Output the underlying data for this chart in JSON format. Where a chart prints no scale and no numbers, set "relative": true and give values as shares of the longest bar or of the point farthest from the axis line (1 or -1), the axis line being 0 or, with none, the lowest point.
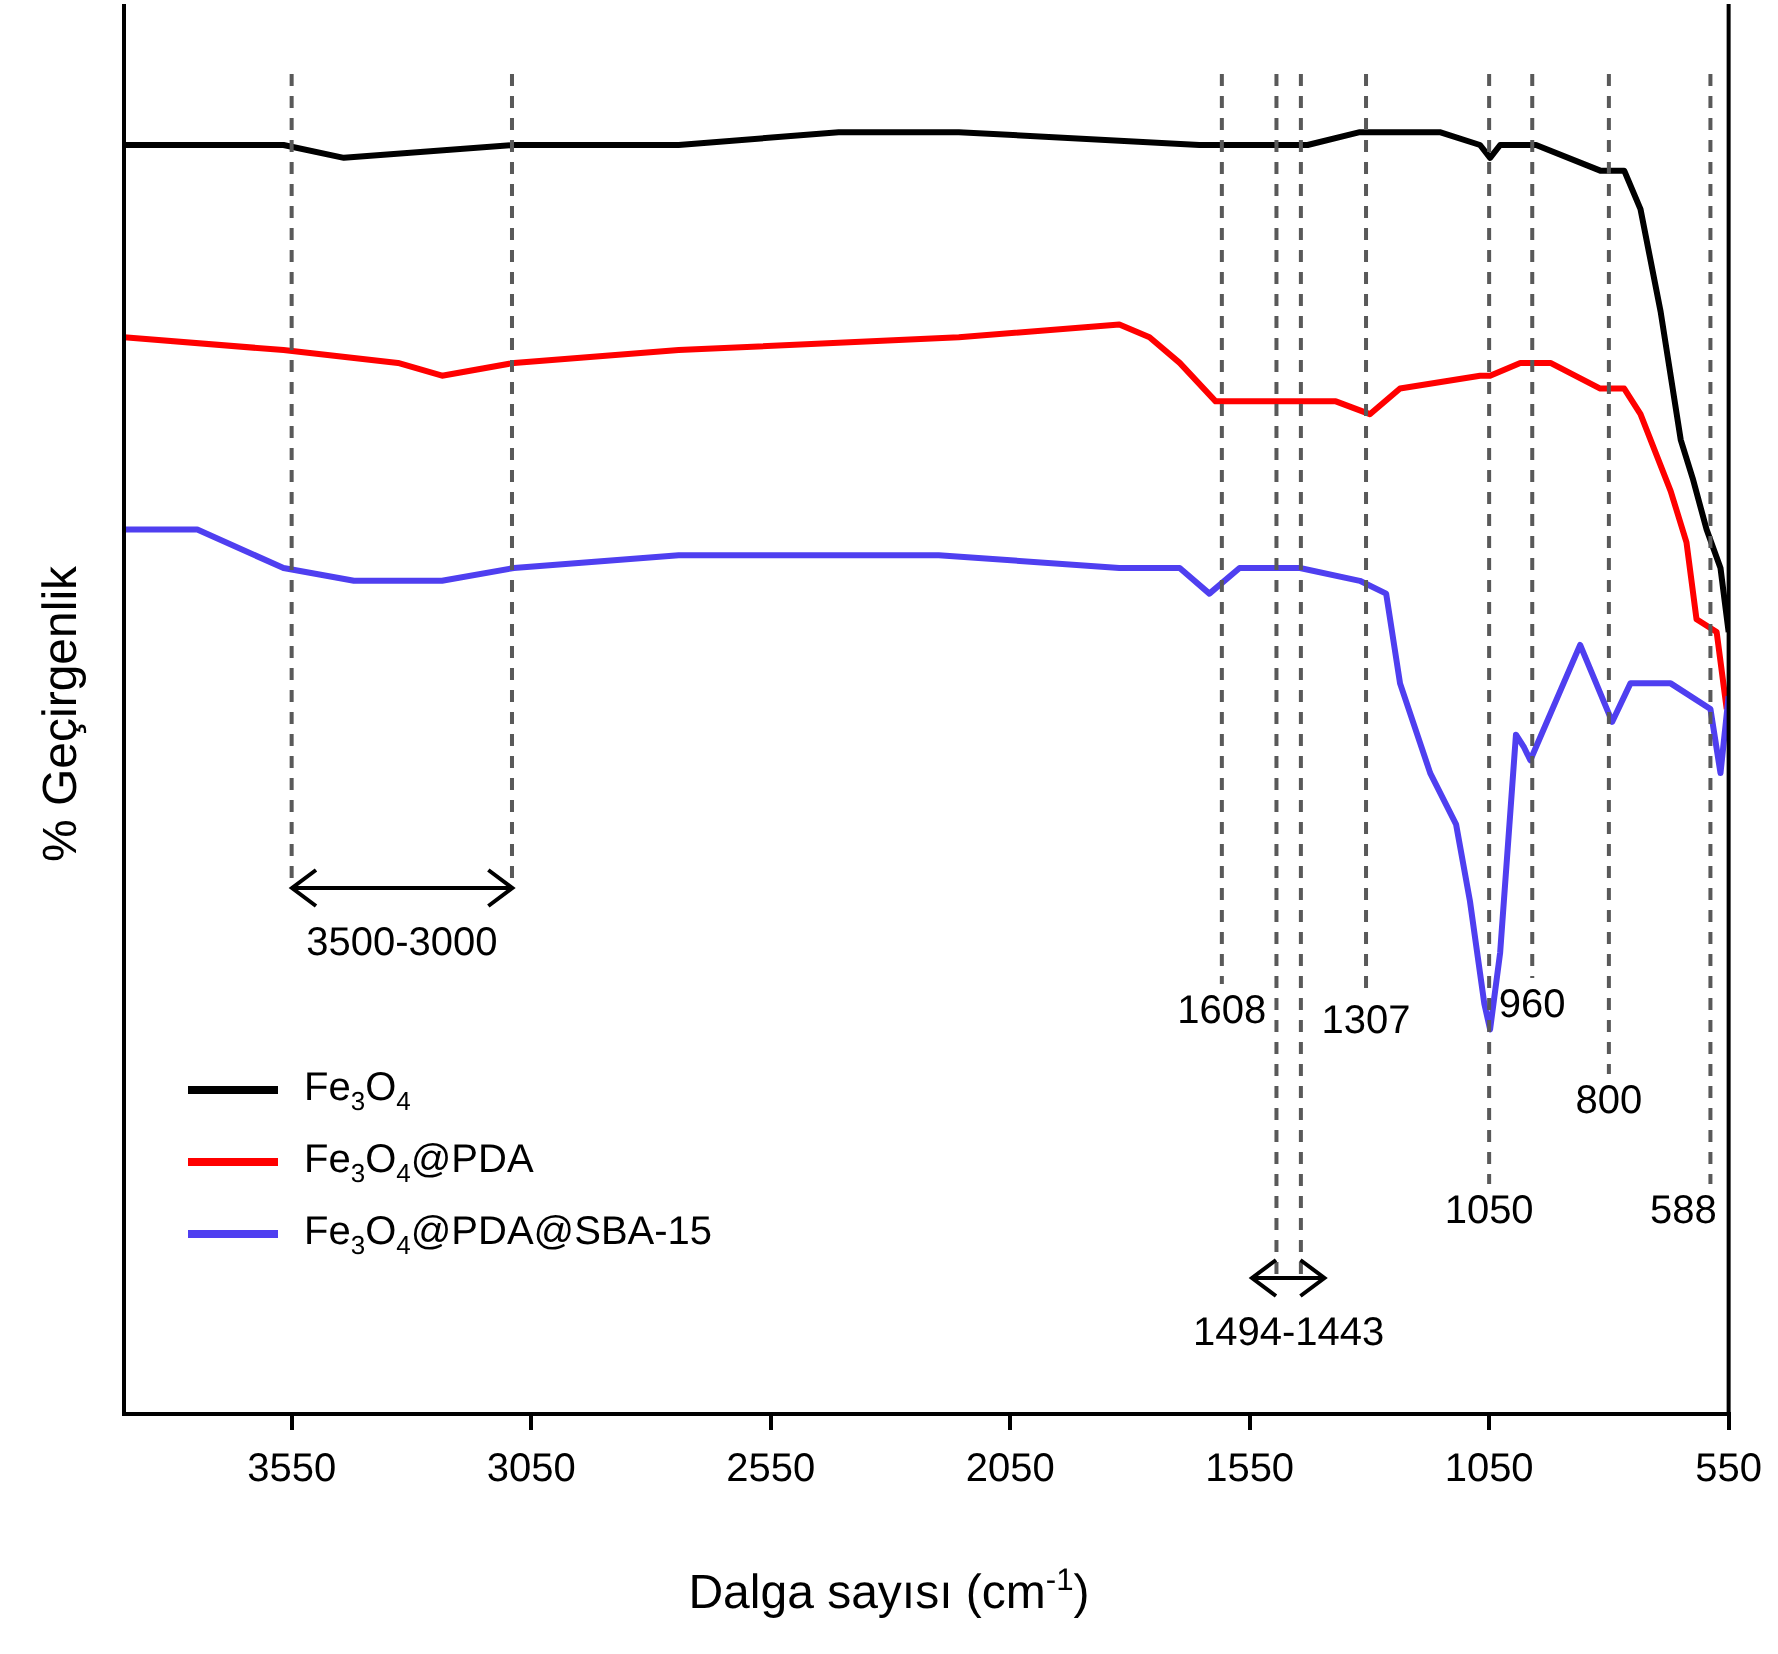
{
  "chart_data": {
    "type": "line",
    "relative": true,
    "xlabel": "Dalga sayısı (cm$^{-1}$)",
    "ylabel": "% Geçirgenlik",
    "xlim": [
      3900,
      550
    ],
    "xticks": [
      3550,
      3050,
      2550,
      2050,
      1550,
      1050,
      550
    ],
    "legend": "bottom left",
    "grid": false,
    "marker": "none",
    "series": [
      {
        "name": "Fe$_{3}$O$_{4}$",
        "color": "#000000",
        "x": [
          3900,
          3567,
          3441,
          3086,
          2742,
          2408,
          2157,
          1655,
          1613,
          1508,
          1429,
          1320,
          1153,
          1069,
          1048,
          1027,
          952,
          818,
          768,
          734,
          692,
          650,
          625,
          596,
          567,
          550
        ],
        "values": [
          0.99,
          0.99,
          0.98,
          0.99,
          0.99,
          1.0,
          1.0,
          0.99,
          0.99,
          0.99,
          0.99,
          1.0,
          1.0,
          0.99,
          0.98,
          0.99,
          0.99,
          0.97,
          0.97,
          0.94,
          0.86,
          0.76,
          0.73,
          0.69,
          0.66,
          0.61
        ]
      },
      {
        "name": "Fe$_{3}$O$_{4}$@PDA",
        "color": "#ff0000",
        "x": [
          3900,
          3567,
          3328,
          3236,
          3086,
          2742,
          2157,
          1822,
          1759,
          1696,
          1621,
          1571,
          1517,
          1445,
          1370,
          1299,
          1236,
          1069,
          1048,
          985,
          922,
          818,
          768,
          734,
          671,
          638,
          617,
          575,
          554
        ],
        "values": [
          0.84,
          0.83,
          0.82,
          0.81,
          0.82,
          0.83,
          0.84,
          0.85,
          0.84,
          0.82,
          0.79,
          0.79,
          0.79,
          0.79,
          0.79,
          0.78,
          0.8,
          0.81,
          0.81,
          0.82,
          0.82,
          0.8,
          0.8,
          0.78,
          0.72,
          0.68,
          0.62,
          0.61,
          0.55
        ]
      },
      {
        "name": "Fe$_{3}$O$_{4}$@PDA@SBA-15",
        "color": "#4f3ff0",
        "x": [
          3900,
          3747,
          3567,
          3420,
          3236,
          3086,
          2742,
          2408,
          2282,
          2199,
          1822,
          1696,
          1634,
          1571,
          1445,
          1320,
          1265,
          1236,
          1173,
          1119,
          1090,
          1060,
          1048,
          1027,
          994,
          977,
          964,
          860,
          793,
          755,
          671,
          588,
          567,
          550
        ],
        "values": [
          0.69,
          0.69,
          0.66,
          0.65,
          0.65,
          0.66,
          0.67,
          0.67,
          0.67,
          0.67,
          0.66,
          0.66,
          0.64,
          0.66,
          0.66,
          0.65,
          0.64,
          0.57,
          0.5,
          0.46,
          0.4,
          0.32,
          0.3,
          0.36,
          0.53,
          0.52,
          0.51,
          0.6,
          0.54,
          0.57,
          0.57,
          0.55,
          0.5,
          0.56
        ]
      }
    ],
    "ref_lines": [
      {
        "axis": "x",
        "value": 3550,
        "line_style": "dashed",
        "color": "#595959"
      },
      {
        "axis": "x",
        "value": 3090,
        "line_style": "dashed",
        "color": "#595959"
      },
      {
        "axis": "x",
        "value": 1608,
        "label": "1608",
        "line_style": "dashed",
        "color": "#595959"
      },
      {
        "axis": "x",
        "value": 1494,
        "line_style": "dashed",
        "color": "#595959"
      },
      {
        "axis": "x",
        "value": 1443,
        "line_style": "dashed",
        "color": "#595959"
      },
      {
        "axis": "x",
        "value": 1307,
        "label": "1307",
        "line_style": "dashed",
        "color": "#595959"
      },
      {
        "axis": "x",
        "value": 1050,
        "label": "1050",
        "line_style": "dashed",
        "color": "#595959"
      },
      {
        "axis": "x",
        "value": 960,
        "label": "960",
        "line_style": "dashed",
        "color": "#595959"
      },
      {
        "axis": "x",
        "value": 800,
        "label": "800",
        "line_style": "dashed",
        "color": "#595959"
      },
      {
        "axis": "x",
        "value": 588,
        "label": "588",
        "line_style": "dashed",
        "color": "#595959"
      }
    ],
    "annotations": [
      "3500-3000",
      "1494-1443"
    ]
  }
}
